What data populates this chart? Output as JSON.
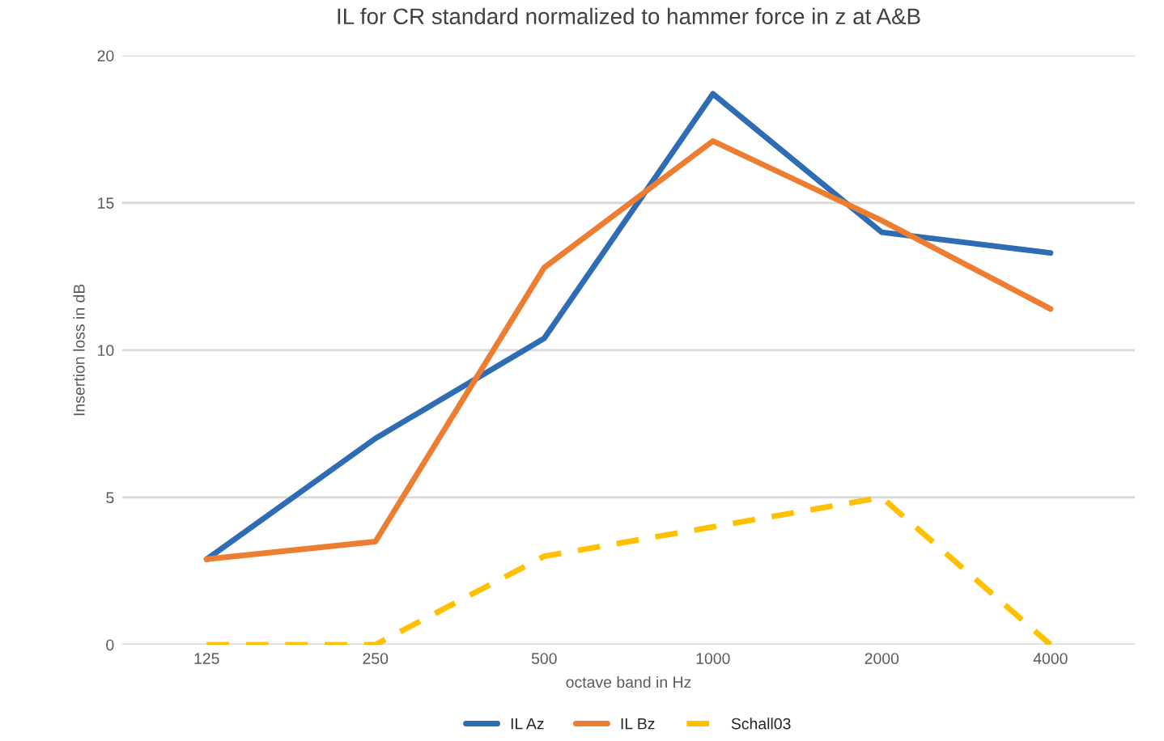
{
  "chart_data": {
    "type": "line",
    "title": "IL for CR standard normalized to hammer force in z at A&B",
    "xlabel": "octave band in Hz",
    "ylabel": "Insertion loss in dB",
    "categories": [
      "125",
      "250",
      "500",
      "1000",
      "2000",
      "4000"
    ],
    "series": [
      {
        "name": "IL Az",
        "color": "#2e6db4",
        "values": [
          2.9,
          7.0,
          10.4,
          18.7,
          14.0,
          13.3
        ],
        "line_style": "solid"
      },
      {
        "name": "IL Bz",
        "color": "#ed7d31",
        "values": [
          2.9,
          3.5,
          12.8,
          17.1,
          14.4,
          11.4
        ],
        "line_style": "solid"
      },
      {
        "name": "Schall03",
        "color": "#ffc000",
        "values": [
          0,
          0,
          3,
          4,
          5,
          0
        ],
        "line_style": "dashed"
      }
    ],
    "ylim": [
      0,
      20
    ],
    "yticks": [
      0,
      5,
      10,
      15,
      20
    ],
    "grid": "y",
    "legend": "bottom",
    "marker": "none"
  }
}
